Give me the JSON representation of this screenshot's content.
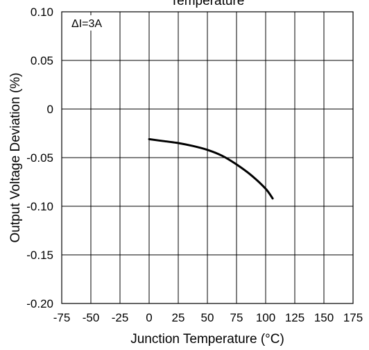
{
  "chart_data": {
    "type": "line",
    "title": "Temperature",
    "xlabel": "Junction Temperature (°C)",
    "ylabel": "Output Voltage Deviation (%)",
    "xlim": [
      -75,
      175
    ],
    "ylim": [
      -0.2,
      0.1
    ],
    "x_ticks": [
      -75,
      -50,
      -25,
      0,
      25,
      50,
      75,
      100,
      125,
      150,
      175
    ],
    "x_tick_labels": [
      "-75",
      "-50",
      "-25",
      "0",
      "25",
      "50",
      "75",
      "100",
      "125",
      "150",
      "175"
    ],
    "y_ticks": [
      0.1,
      0.05,
      0,
      -0.05,
      -0.1,
      -0.15,
      -0.2
    ],
    "y_tick_labels": [
      "0.10",
      "0.05",
      "0",
      "-0.05",
      "-0.10",
      "-0.15",
      "-0.20"
    ],
    "grid": true,
    "legend": "none",
    "annotation": "ΔI=3A",
    "line_color": "#000000",
    "series": [
      {
        "x": [
          0,
          12.5,
          25,
          37.5,
          50,
          62.5,
          75,
          87.5,
          100,
          106
        ],
        "y": [
          -0.031,
          -0.033,
          -0.035,
          -0.038,
          -0.042,
          -0.048,
          -0.057,
          -0.068,
          -0.082,
          -0.092
        ]
      }
    ]
  }
}
